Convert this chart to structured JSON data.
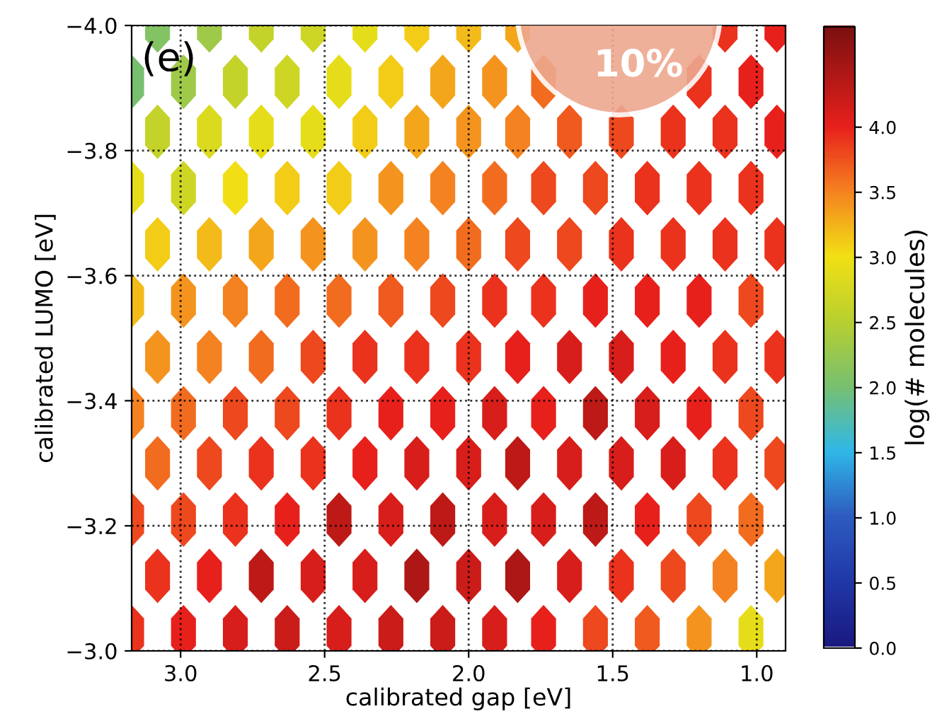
{
  "chart_data": {
    "type": "scatter",
    "xlabel": "calibrated gap [eV]",
    "ylabel": "calibrated LUMO [eV]",
    "clabel": "log(# molecules)",
    "annotations": [
      "(e)",
      "10%"
    ],
    "xlim": [
      3.17,
      0.9
    ],
    "ylim": [
      -3.0,
      -4.0
    ],
    "xticks": [
      {
        "value": 3.0,
        "label": "3.0"
      },
      {
        "value": 2.5,
        "label": "2.5"
      },
      {
        "value": 2.0,
        "label": "2.0"
      },
      {
        "value": 1.5,
        "label": "1.5"
      },
      {
        "value": 1.0,
        "label": "1.0"
      }
    ],
    "yticks": [
      {
        "value": -4.0,
        "label": "−4.0"
      },
      {
        "value": -3.8,
        "label": "−3.8"
      },
      {
        "value": -3.6,
        "label": "−3.6"
      },
      {
        "value": -3.4,
        "label": "−3.4"
      },
      {
        "value": -3.2,
        "label": "−3.2"
      },
      {
        "value": -3.0,
        "label": "−3.0"
      }
    ],
    "clim": [
      0.0,
      4.77
    ],
    "cticks": [
      {
        "value": 0.0,
        "label": "0.0"
      },
      {
        "value": 0.5,
        "label": "0.5"
      },
      {
        "value": 1.0,
        "label": "1.0"
      },
      {
        "value": 1.5,
        "label": "1.5"
      },
      {
        "value": 2.0,
        "label": "2.0"
      },
      {
        "value": 2.5,
        "label": "2.5"
      },
      {
        "value": 3.0,
        "label": "3.0"
      },
      {
        "value": 3.5,
        "label": "3.5"
      },
      {
        "value": 4.0,
        "label": "4.0"
      }
    ],
    "grid": true,
    "x": [
      3.17,
      2.99,
      2.81,
      2.63,
      2.45,
      2.27,
      2.09,
      1.91,
      1.74,
      1.56,
      1.38,
      1.2,
      1.02,
      3.08,
      2.9,
      2.72,
      2.54,
      2.36,
      2.18,
      2.0,
      1.83,
      1.65,
      1.47,
      1.29,
      1.11,
      0.93,
      3.17,
      2.99,
      2.81,
      2.63,
      2.45,
      2.27,
      2.09,
      1.91,
      1.74,
      1.56,
      1.38,
      1.2,
      1.02,
      3.08,
      2.9,
      2.72,
      2.54,
      2.36,
      2.18,
      2.0,
      1.83,
      1.65,
      1.47,
      1.29,
      1.11,
      0.93,
      3.17,
      2.99,
      2.81,
      2.63,
      2.45,
      2.27,
      2.09,
      1.91,
      1.74,
      1.56,
      1.38,
      1.2,
      1.02,
      3.08,
      2.9,
      2.72,
      2.54,
      2.36,
      2.18,
      2.0,
      1.83,
      1.65,
      1.47,
      1.29,
      1.11,
      0.93,
      3.17,
      2.99,
      2.81,
      2.63,
      2.45,
      2.27,
      2.09,
      1.91,
      1.74,
      1.56,
      1.38,
      1.2,
      1.02,
      3.08,
      2.9,
      2.72,
      2.54,
      2.36,
      2.18,
      2.0,
      1.83,
      1.65,
      1.47,
      1.29,
      1.11,
      0.93,
      3.17,
      2.99,
      2.81,
      2.63,
      2.45,
      2.27,
      2.09,
      1.91,
      1.74,
      1.56,
      1.38,
      1.2,
      1.02,
      3.08,
      2.9,
      2.72,
      2.54,
      2.36,
      2.18,
      2.0,
      1.83,
      1.65,
      1.47,
      1.29,
      1.11,
      0.93,
      3.17,
      2.99,
      2.81,
      2.63,
      2.45,
      2.27,
      2.09,
      1.91,
      1.74,
      1.56,
      1.38,
      1.2,
      1.02,
      3.08,
      2.9,
      2.72,
      2.54,
      2.36,
      2.18,
      2.0,
      1.83,
      1.65,
      1.47,
      1.29,
      1.11,
      0.93
    ],
    "values": [
      -3.03,
      -3.03,
      -3.03,
      -3.03,
      -3.03,
      -3.03,
      -3.03,
      -3.03,
      -3.03,
      -3.03,
      -3.03,
      -3.03,
      -3.03,
      -3.12,
      -3.12,
      -3.12,
      -3.12,
      -3.12,
      -3.12,
      -3.12,
      -3.12,
      -3.12,
      -3.12,
      -3.12,
      -3.12,
      -3.12,
      -3.21,
      -3.21,
      -3.21,
      -3.21,
      -3.21,
      -3.21,
      -3.21,
      -3.21,
      -3.21,
      -3.21,
      -3.21,
      -3.21,
      -3.21,
      -3.3,
      -3.3,
      -3.3,
      -3.3,
      -3.3,
      -3.3,
      -3.3,
      -3.3,
      -3.3,
      -3.3,
      -3.3,
      -3.3,
      -3.3,
      -3.38,
      -3.38,
      -3.38,
      -3.38,
      -3.38,
      -3.38,
      -3.38,
      -3.38,
      -3.38,
      -3.38,
      -3.38,
      -3.38,
      -3.38,
      -3.47,
      -3.47,
      -3.47,
      -3.47,
      -3.47,
      -3.47,
      -3.47,
      -3.47,
      -3.47,
      -3.47,
      -3.47,
      -3.47,
      -3.47,
      -3.56,
      -3.56,
      -3.56,
      -3.56,
      -3.56,
      -3.56,
      -3.56,
      -3.56,
      -3.56,
      -3.56,
      -3.56,
      -3.56,
      -3.56,
      -3.65,
      -3.65,
      -3.65,
      -3.65,
      -3.65,
      -3.65,
      -3.65,
      -3.65,
      -3.65,
      -3.65,
      -3.65,
      -3.65,
      -3.65,
      -3.74,
      -3.74,
      -3.74,
      -3.74,
      -3.74,
      -3.74,
      -3.74,
      -3.74,
      -3.74,
      -3.74,
      -3.74,
      -3.74,
      -3.74,
      -3.83,
      -3.83,
      -3.83,
      -3.83,
      -3.83,
      -3.83,
      -3.83,
      -3.83,
      -3.83,
      -3.83,
      -3.83,
      -3.83,
      -3.83,
      -3.91,
      -3.91,
      -3.91,
      -3.91,
      -3.91,
      -3.91,
      -3.91,
      -3.91,
      -3.91,
      null,
      null,
      -3.91,
      -3.91,
      -4.0,
      -4.0,
      -4.0,
      -4.0,
      -4.0,
      -4.0,
      -4.0,
      -4.0,
      null,
      null,
      null,
      -4.0,
      -4.0
    ],
    "cvalues": [
      3.9,
      4.0,
      4.1,
      4.2,
      4.1,
      4.2,
      4.2,
      4.1,
      4.0,
      3.8,
      3.7,
      3.4,
      2.9,
      3.9,
      4.0,
      4.3,
      4.1,
      4.1,
      4.4,
      4.2,
      4.4,
      4.1,
      3.9,
      3.8,
      3.5,
      3.3,
      3.8,
      3.8,
      3.9,
      4.0,
      4.3,
      4.1,
      4.3,
      4.1,
      4.1,
      4.3,
      4.0,
      3.8,
      3.6,
      3.6,
      3.8,
      3.9,
      3.9,
      4.0,
      4.1,
      4.1,
      4.3,
      4.1,
      4.1,
      4.1,
      3.9,
      3.8,
      3.5,
      3.6,
      3.8,
      3.8,
      3.9,
      4.0,
      4.0,
      4.1,
      4.0,
      4.3,
      4.1,
      4.0,
      3.8,
      3.4,
      3.5,
      3.6,
      3.8,
      3.9,
      3.9,
      3.9,
      4.0,
      4.1,
      4.1,
      4.0,
      3.9,
      3.9,
      3.2,
      3.4,
      3.5,
      3.6,
      3.6,
      3.7,
      3.8,
      3.9,
      3.9,
      4.0,
      4.0,
      4.0,
      3.8,
      3.1,
      3.2,
      3.3,
      3.4,
      3.4,
      3.5,
      3.6,
      3.8,
      3.8,
      3.9,
      3.9,
      3.9,
      3.9,
      2.9,
      2.7,
      3.0,
      3.1,
      3.1,
      3.4,
      3.5,
      3.6,
      3.8,
      3.8,
      3.9,
      3.9,
      3.9,
      2.6,
      2.8,
      2.9,
      2.9,
      3.1,
      3.3,
      3.4,
      3.5,
      3.7,
      3.8,
      3.9,
      3.9,
      4.0,
      2.0,
      2.3,
      2.6,
      2.7,
      2.9,
      3.1,
      3.3,
      3.4,
      3.6,
      null,
      null,
      3.9,
      4.0,
      2.1,
      2.3,
      2.6,
      2.7,
      2.9,
      3.1,
      3.2,
      3.3,
      null,
      null,
      null,
      3.9,
      4.0
    ]
  }
}
